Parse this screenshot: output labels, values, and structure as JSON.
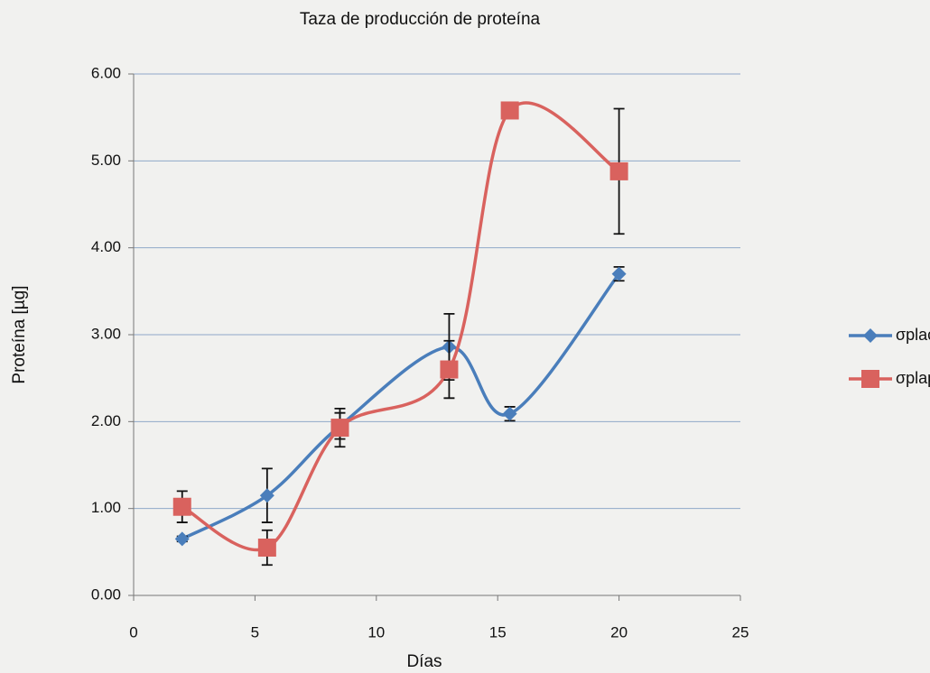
{
  "chart_data": {
    "type": "line",
    "title": "Taza de producción de proteína",
    "x_label": "Días",
    "y_label": "Proteína [µg]",
    "xlim": [
      0,
      25
    ],
    "xticks": [
      0,
      5,
      10,
      15,
      20,
      25
    ],
    "ylim": [
      0,
      6
    ],
    "yticks": [
      {
        "value": 0,
        "label": "0.00"
      },
      {
        "value": 1,
        "label": "1.00"
      },
      {
        "value": 2,
        "label": "2.00"
      },
      {
        "value": 3,
        "label": "3.00"
      },
      {
        "value": 4,
        "label": "4.00"
      },
      {
        "value": 5,
        "label": "5.00"
      },
      {
        "value": 6,
        "label": "6.00"
      }
    ],
    "grid": true,
    "smooth": true,
    "legend": "right",
    "x": [
      2,
      5.5,
      8.5,
      13,
      15.5,
      20
    ],
    "series": [
      {
        "name": "σplacont",
        "color": "#4a7ebb",
        "marker": "diamond",
        "values": [
          0.65,
          1.15,
          1.95,
          2.86,
          2.09,
          3.7
        ],
        "errors": [
          0.03,
          0.31,
          0.15,
          0.38,
          0.08,
          0.08
        ]
      },
      {
        "name": "σplappy",
        "color": "#d9625e",
        "marker": "square",
        "values": [
          1.02,
          0.55,
          1.93,
          2.6,
          5.58,
          4.88
        ],
        "errors": [
          0.18,
          0.2,
          0.22,
          0.33,
          0.08,
          0.72
        ]
      }
    ]
  }
}
